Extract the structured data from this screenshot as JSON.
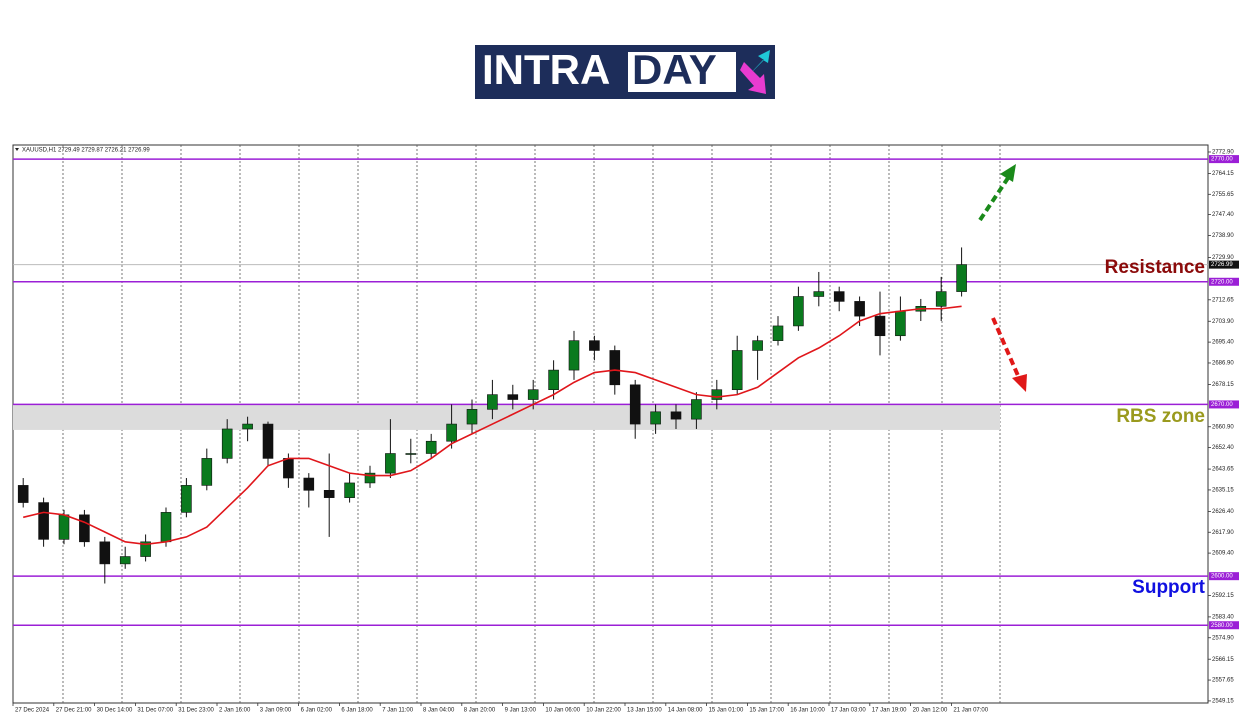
{
  "logo": {
    "left": "INTRA",
    "right": "DAY"
  },
  "chart_data": {
    "type": "candlestick",
    "title": "XAUUSD,H1  2729.49 2729.87 2726.21 2726.99",
    "categories": [
      "27 Dec 2024",
      null,
      "27 Dec 21:00",
      null,
      "30 Dec 14:00",
      null,
      "31 Dec 07:00",
      null,
      "31 Dec 23:00",
      null,
      "2 Jan 16:00",
      null,
      "3 Jan 09:00",
      null,
      "6 Jan 02:00",
      null,
      "6 Jan 18:00",
      null,
      "7 Jan 11:00",
      null,
      "8 Jan 04:00",
      null,
      "8 Jan 20:00",
      null,
      "9 Jan 13:00",
      null,
      "10 Jan 06:00",
      null,
      "10 Jan 22:00",
      null,
      "13 Jan 15:00",
      null,
      "14 Jan 08:00",
      null,
      "15 Jan 01:00",
      null,
      "15 Jan 17:00",
      null,
      "16 Jan 10:00",
      null,
      "17 Jan 03:00",
      null,
      "17 Jan 19:00",
      null,
      "20 Jan 12:00",
      null,
      "21 Jan 07:00"
    ],
    "open": [
      2637,
      2630,
      2615,
      2625,
      2614,
      2605,
      2608,
      2614,
      2626,
      2637,
      2648,
      2660,
      2662,
      2648,
      2640,
      2635,
      2632,
      2638,
      2642,
      2650,
      2650,
      2655,
      2662,
      2668,
      2674,
      2672,
      2676,
      2684,
      2696,
      2692,
      2678,
      2662,
      2667,
      2664,
      2672,
      2676,
      2692,
      2696,
      2702,
      2714,
      2716,
      2712,
      2706,
      2698,
      2708,
      2710,
      2716
    ],
    "high": [
      2640,
      2632,
      2627,
      2627,
      2616,
      2612,
      2617,
      2628,
      2640,
      2652,
      2664,
      2665,
      2663,
      2650,
      2642,
      2650,
      2642,
      2645,
      2664,
      2656,
      2658,
      2670,
      2672,
      2680,
      2678,
      2680,
      2688,
      2700,
      2698,
      2694,
      2680,
      2670,
      2670,
      2675,
      2680,
      2698,
      2698,
      2706,
      2718,
      2724,
      2718,
      2714,
      2716,
      2714,
      2713,
      2722,
      2734
    ],
    "low": [
      2628,
      2612,
      2613,
      2612,
      2597,
      2603,
      2606,
      2612,
      2624,
      2635,
      2646,
      2655,
      2645,
      2636,
      2628,
      2616,
      2630,
      2636,
      2640,
      2646,
      2648,
      2652,
      2658,
      2664,
      2668,
      2668,
      2672,
      2680,
      2688,
      2674,
      2656,
      2658,
      2660,
      2660,
      2668,
      2674,
      2680,
      2694,
      2700,
      2710,
      2708,
      2702,
      2690,
      2696,
      2704,
      2704,
      2714
    ],
    "close": [
      2630,
      2615,
      2625,
      2614,
      2605,
      2608,
      2614,
      2626,
      2637,
      2648,
      2660,
      2662,
      2648,
      2640,
      2635,
      2632,
      2638,
      2642,
      2650,
      2650,
      2655,
      2662,
      2668,
      2674,
      2672,
      2676,
      2684,
      2696,
      2692,
      2678,
      2662,
      2667,
      2664,
      2672,
      2676,
      2692,
      2696,
      2702,
      2714,
      2716,
      2712,
      2706,
      2698,
      2708,
      2710,
      2716,
      2727
    ],
    "up_color": "#0a7a1e",
    "down_color": "#111111",
    "ma": {
      "color": "#e0161b",
      "values": [
        2624,
        2626,
        2625,
        2622,
        2618,
        2614,
        2613,
        2614,
        2616,
        2620,
        2628,
        2636,
        2645,
        2648,
        2648,
        2645,
        2642,
        2641,
        2641,
        2643,
        2648,
        2654,
        2658,
        2662,
        2666,
        2670,
        2674,
        2679,
        2683,
        2684,
        2683,
        2680,
        2677,
        2674,
        2673,
        2674,
        2677,
        2683,
        2689,
        2693,
        2698,
        2704,
        2707,
        2708,
        2709,
        2709,
        2710
      ]
    },
    "ylim": [
      2548.3,
      2775.75
    ],
    "yticks": [
      {
        "value": 2772.9,
        "label": "2772.90"
      },
      {
        "value": 2764.15,
        "label": "2764.15"
      },
      {
        "value": 2755.65,
        "label": "2755.65"
      },
      {
        "value": 2747.4,
        "label": "2747.40"
      },
      {
        "value": 2738.9,
        "label": "2738.90"
      },
      {
        "value": 2729.9,
        "label": "2729.90"
      },
      {
        "value": 2712.65,
        "label": "2712.65"
      },
      {
        "value": 2703.9,
        "label": "2703.90"
      },
      {
        "value": 2695.4,
        "label": "2695.40"
      },
      {
        "value": 2686.9,
        "label": "2686.90"
      },
      {
        "value": 2678.15,
        "label": "2678.15"
      },
      {
        "value": 2660.9,
        "label": "2660.90"
      },
      {
        "value": 2652.4,
        "label": "2652.40"
      },
      {
        "value": 2643.65,
        "label": "2643.65"
      },
      {
        "value": 2635.15,
        "label": "2635.15"
      },
      {
        "value": 2626.4,
        "label": "2626.40"
      },
      {
        "value": 2617.9,
        "label": "2617.90"
      },
      {
        "value": 2609.4,
        "label": "2609.40"
      },
      {
        "value": 2592.15,
        "label": "2592.15"
      },
      {
        "value": 2583.4,
        "label": "2583.40"
      },
      {
        "value": 2574.9,
        "label": "2574.90"
      },
      {
        "value": 2566.15,
        "label": "2566.15"
      },
      {
        "value": 2557.65,
        "label": "2557.65"
      },
      {
        "value": 2549.15,
        "label": "2549.15"
      }
    ],
    "levels": [
      {
        "value": 2770,
        "label": "2770.00"
      },
      {
        "value": 2720,
        "label": "2720.00"
      },
      {
        "value": 2670,
        "label": "2670.00"
      },
      {
        "value": 2600,
        "label": "2600.00"
      },
      {
        "value": 2580,
        "label": "2580.00"
      }
    ],
    "level_color": "#9b1fd6",
    "current": {
      "value": 2726.99,
      "label": "2726.99"
    },
    "zone": [
      2659.6,
      2670
    ],
    "zone_color": "#dcdcdc",
    "annotations": [
      {
        "text": "Resistance",
        "color": "#8b0a0a"
      },
      {
        "text": "RBS zone",
        "color": "#9a9a1e"
      },
      {
        "text": "Support",
        "color": "#1010e0"
      }
    ]
  }
}
